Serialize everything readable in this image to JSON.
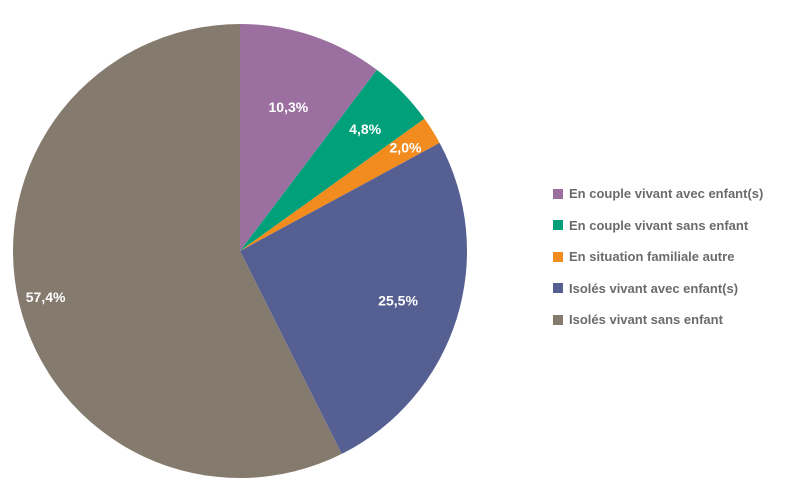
{
  "chart_data": {
    "type": "pie",
    "title": "",
    "legend_position": "right",
    "slices": [
      {
        "name": "En couple vivant avec enfant(s)",
        "value": 10.3,
        "label": "10,3%",
        "color": "#9b6fa0"
      },
      {
        "name": "En couple vivant sans enfant",
        "value": 4.8,
        "label": "4,8%",
        "color": "#00a07a"
      },
      {
        "name": "En situation familiale autre",
        "value": 2.0,
        "label": "2,0%",
        "color": "#f28c1f"
      },
      {
        "name": "Isolés vivant avec enfant(s)",
        "value": 25.5,
        "label": "25,5%",
        "color": "#555f92"
      },
      {
        "name": "Isolés vivant sans enfant",
        "value": 57.4,
        "label": "57,4%",
        "color": "#857a6e"
      }
    ]
  }
}
